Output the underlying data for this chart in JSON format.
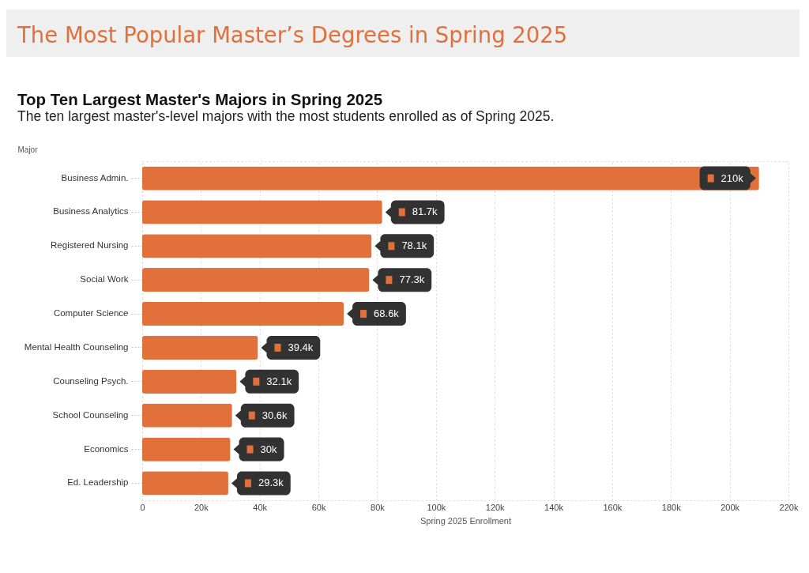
{
  "chart_data": {
    "type": "bar",
    "orientation": "horizontal",
    "title": "The Most Popular Master’s Degrees in Spring 2025",
    "subtitle": "Top Ten Largest Master's Majors in Spring 2025",
    "annotations": [
      "The ten largest master's-level majors with the most students enrolled as of Spring 2025."
    ],
    "ylabel": "Major",
    "xlabel": "Spring 2025 Enrollment",
    "categories": [
      "Business Admin.",
      "Business Analytics",
      "Registered Nursing",
      "Social Work",
      "Computer Science",
      "Mental Health Counseling",
      "Counseling Psych.",
      "School Counseling",
      "Economics",
      "Ed. Leadership"
    ],
    "values": [
      210000,
      81700,
      78100,
      77300,
      68600,
      39400,
      32100,
      30600,
      30000,
      29300
    ],
    "value_labels": [
      "210k",
      "81.7k",
      "78.1k",
      "77.3k",
      "68.6k",
      "39.4k",
      "32.1k",
      "30.6k",
      "30k",
      "29.3k"
    ],
    "color": "#e2703a",
    "xlim": [
      0,
      220000
    ],
    "xticks": [
      0,
      {
        "value": 20000,
        "label": "20k"
      },
      {
        "value": 40000,
        "label": "40k"
      },
      {
        "value": 60000,
        "label": "60k"
      },
      {
        "value": 80000,
        "label": "80k"
      },
      {
        "value": 100000,
        "label": "100k"
      },
      {
        "value": 120000,
        "label": "120k"
      },
      {
        "value": 140000,
        "label": "140k"
      },
      {
        "value": 160000,
        "label": "160k"
      },
      {
        "value": 180000,
        "label": "180k"
      },
      {
        "value": 200000,
        "label": "200k"
      },
      {
        "value": 220000,
        "label": "220k"
      }
    ],
    "grid": "x"
  }
}
